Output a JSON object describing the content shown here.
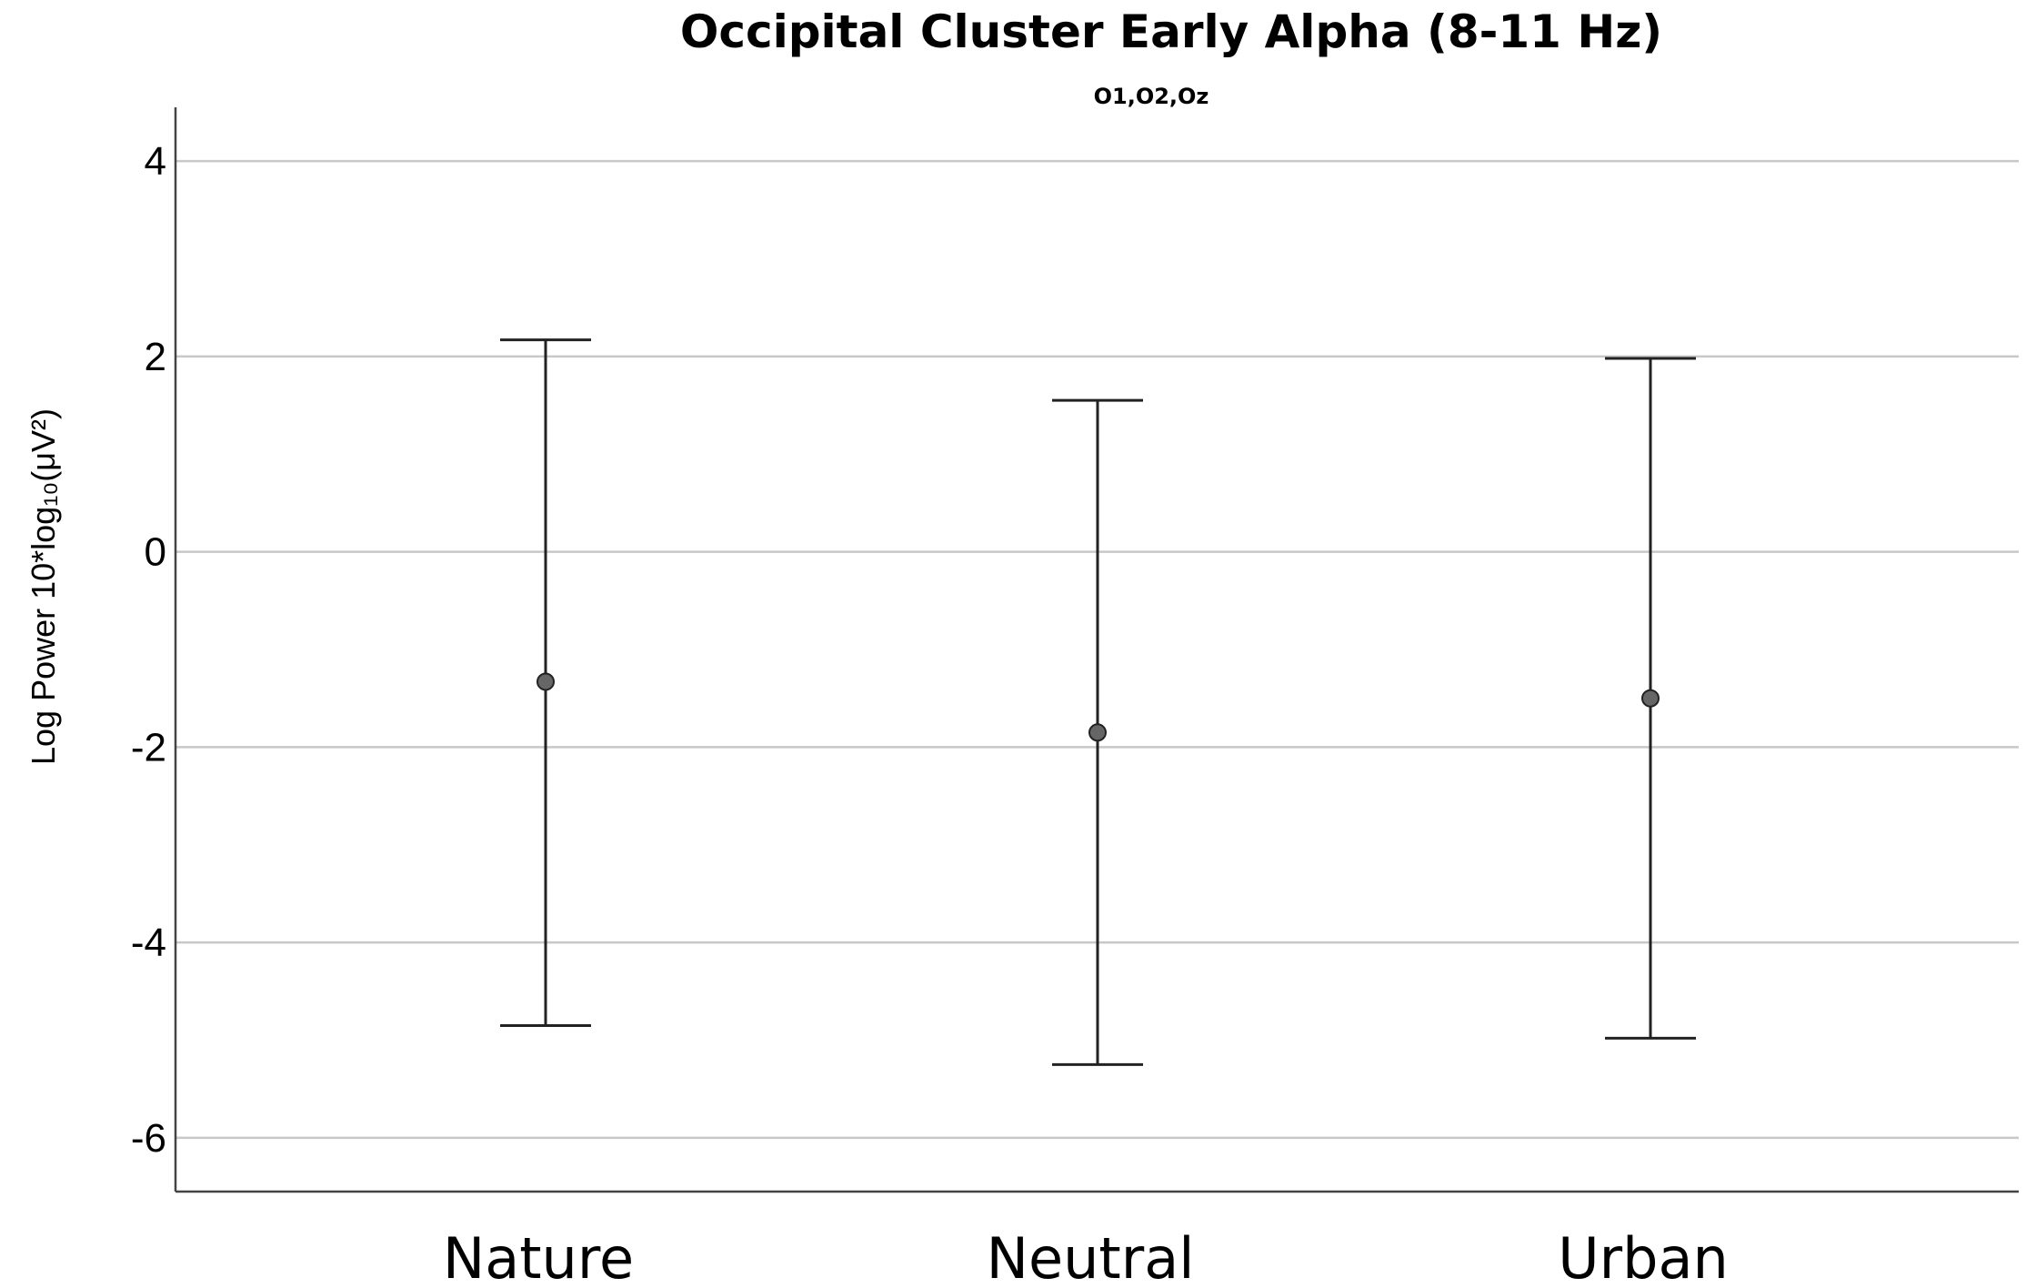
{
  "chart_data": {
    "type": "scatter",
    "subtype": "error-bar",
    "title": "Occipital Cluster Early Alpha (8-11 Hz)",
    "subtitle": "O1,O2,Oz",
    "xlabel": "",
    "ylabel": "Log Power 10*log₁₀(μV²)",
    "categories": [
      "Nature",
      "Neutral",
      "Urban"
    ],
    "series": [
      {
        "values": [
          -1.33,
          -1.85,
          -1.5
        ],
        "error_low": [
          -4.85,
          -5.25,
          -4.98
        ],
        "error_high": [
          2.17,
          1.55,
          1.98
        ]
      }
    ],
    "yticks": [
      "4",
      "2",
      "0",
      "-2",
      "-4",
      "-6"
    ],
    "ytick_values": [
      4,
      2,
      0,
      -2,
      -4,
      -6
    ],
    "ylim": [
      -6.55,
      4.55
    ],
    "grid": true,
    "legend": "none"
  }
}
